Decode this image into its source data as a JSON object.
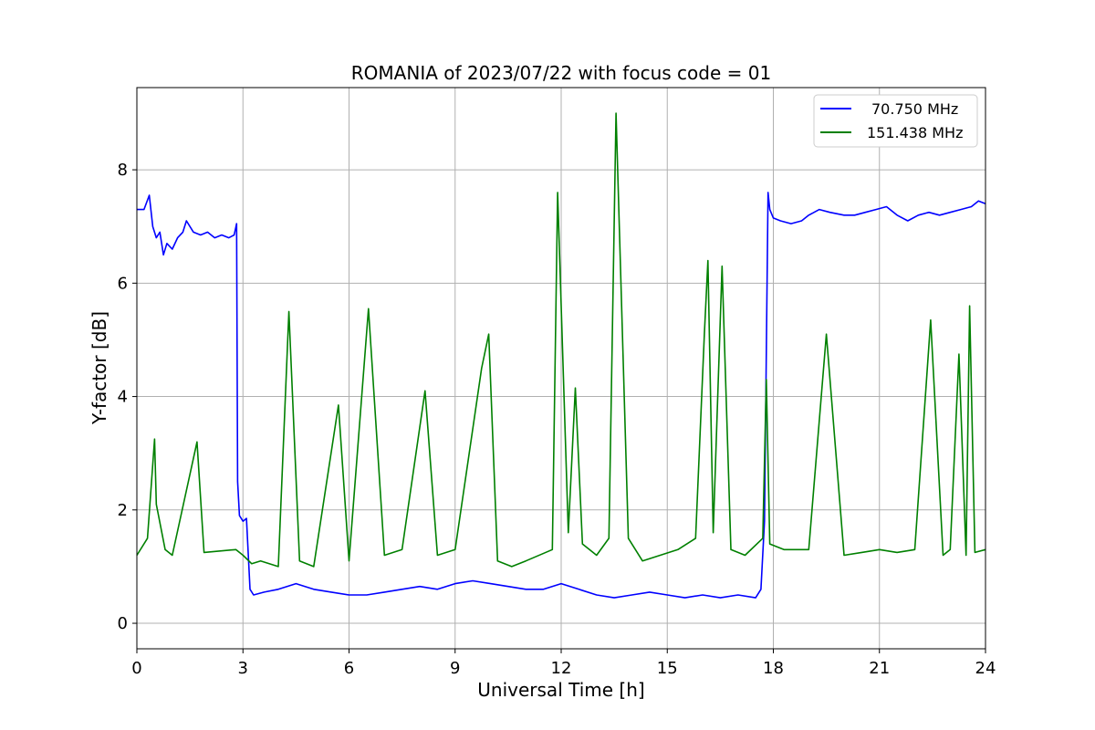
{
  "chart_data": {
    "type": "line",
    "title": "ROMANIA of 2023/07/22 with focus code = 01",
    "xlabel": "Universal Time [h]",
    "ylabel": "Y-factor [dB]",
    "xlim": [
      0,
      24
    ],
    "ylim": [
      -0.45,
      9.45
    ],
    "xticks": [
      0,
      3,
      6,
      9,
      12,
      15,
      18,
      21,
      24
    ],
    "yticks": [
      0,
      2,
      4,
      6,
      8
    ],
    "grid": true,
    "legend_position": "top-right",
    "series": [
      {
        "name": "70.750 MHz",
        "color": "#0000ff",
        "x": [
          0,
          0.2,
          0.35,
          0.45,
          0.55,
          0.65,
          0.75,
          0.85,
          1.0,
          1.15,
          1.3,
          1.4,
          1.6,
          1.8,
          2.0,
          2.2,
          2.4,
          2.6,
          2.75,
          2.82,
          2.85,
          2.9,
          3.0,
          3.1,
          3.2,
          3.3,
          3.6,
          4.0,
          4.5,
          5.0,
          5.5,
          6.0,
          6.5,
          7.0,
          7.5,
          8.0,
          8.5,
          9.0,
          9.5,
          10.0,
          10.5,
          11.0,
          11.5,
          12.0,
          12.5,
          13.0,
          13.5,
          14.0,
          14.5,
          15.0,
          15.5,
          16.0,
          16.5,
          17.0,
          17.5,
          17.65,
          17.75,
          17.85,
          17.9,
          18.0,
          18.2,
          18.5,
          18.8,
          19.0,
          19.3,
          19.6,
          20.0,
          20.3,
          20.6,
          20.9,
          21.2,
          21.5,
          21.8,
          22.1,
          22.4,
          22.7,
          23.0,
          23.3,
          23.6,
          23.8,
          24.0
        ],
        "y": [
          7.3,
          7.3,
          7.55,
          7.0,
          6.8,
          6.9,
          6.5,
          6.7,
          6.6,
          6.8,
          6.9,
          7.1,
          6.9,
          6.85,
          6.9,
          6.8,
          6.85,
          6.8,
          6.85,
          7.05,
          2.5,
          1.9,
          1.8,
          1.85,
          0.6,
          0.5,
          0.55,
          0.6,
          0.7,
          0.6,
          0.55,
          0.5,
          0.5,
          0.55,
          0.6,
          0.65,
          0.6,
          0.7,
          0.75,
          0.7,
          0.65,
          0.6,
          0.6,
          0.7,
          0.6,
          0.5,
          0.45,
          0.5,
          0.55,
          0.5,
          0.45,
          0.5,
          0.45,
          0.5,
          0.45,
          0.6,
          1.8,
          7.6,
          7.3,
          7.15,
          7.1,
          7.05,
          7.1,
          7.2,
          7.3,
          7.25,
          7.2,
          7.2,
          7.25,
          7.3,
          7.35,
          7.2,
          7.1,
          7.2,
          7.25,
          7.2,
          7.25,
          7.3,
          7.35,
          7.45,
          7.4
        ]
      },
      {
        "name": "151.438 MHz",
        "color": "#008000",
        "x": [
          0,
          0.3,
          0.5,
          0.55,
          0.8,
          1.0,
          1.7,
          1.9,
          2.8,
          3.0,
          3.25,
          3.5,
          4.0,
          4.3,
          4.6,
          5.0,
          5.7,
          6.0,
          6.55,
          7.0,
          7.5,
          8.15,
          8.5,
          9.0,
          9.75,
          9.95,
          10.2,
          10.6,
          11.0,
          11.75,
          11.9,
          12.2,
          12.4,
          12.6,
          13.0,
          13.35,
          13.55,
          13.9,
          14.3,
          14.8,
          15.3,
          15.8,
          16.05,
          16.15,
          16.3,
          16.55,
          16.8,
          17.2,
          17.7,
          17.8,
          17.9,
          18.3,
          19.0,
          19.5,
          20.0,
          20.5,
          21.0,
          21.5,
          22.0,
          22.45,
          22.8,
          23.0,
          23.25,
          23.45,
          23.55,
          23.7,
          24.0
        ],
        "y": [
          1.2,
          1.5,
          3.25,
          2.1,
          1.3,
          1.2,
          3.2,
          1.25,
          1.3,
          1.2,
          1.05,
          1.1,
          1.0,
          5.5,
          1.1,
          1.0,
          3.85,
          1.1,
          5.55,
          1.2,
          1.3,
          4.1,
          1.2,
          1.3,
          4.5,
          5.1,
          1.1,
          1.0,
          1.1,
          1.3,
          7.6,
          1.6,
          4.15,
          1.4,
          1.2,
          1.5,
          9.0,
          1.5,
          1.1,
          1.2,
          1.3,
          1.5,
          5.1,
          6.4,
          1.6,
          6.3,
          1.3,
          1.2,
          1.5,
          4.3,
          1.4,
          1.3,
          1.3,
          5.1,
          1.2,
          1.25,
          1.3,
          1.25,
          1.3,
          5.35,
          1.2,
          1.3,
          4.75,
          1.2,
          5.6,
          1.25,
          1.3
        ]
      }
    ]
  }
}
